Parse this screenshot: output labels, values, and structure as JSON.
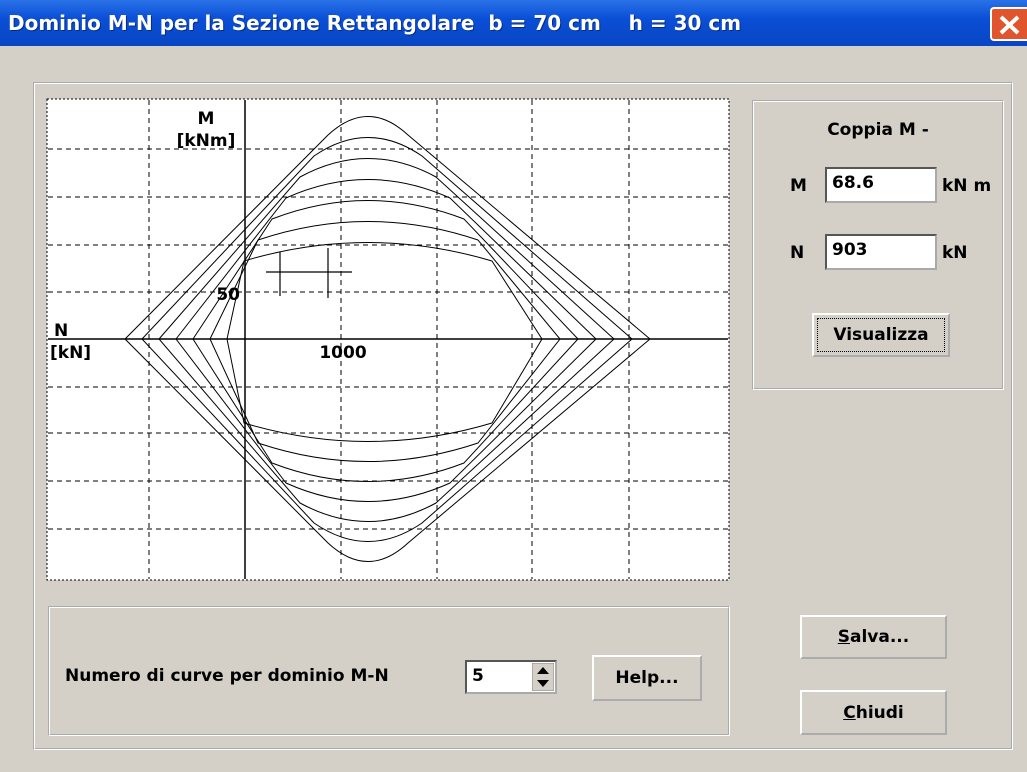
{
  "window": {
    "title": "Dominio M-N per la Sezione Rettangolare  b = 70 cm    h = 30 cm"
  },
  "plot": {
    "m_axis": "M",
    "m_unit": "[kNm]",
    "n_axis": "N",
    "n_unit": "[kN]",
    "m_tick": "50",
    "n_tick": "1000"
  },
  "panel": {
    "title": "Coppia M -",
    "m_label": "M",
    "m_value": "68.6",
    "m_unit": "kN m",
    "n_label": "N",
    "n_value": "903",
    "n_unit": "kN",
    "button": "Visualizza"
  },
  "bottom": {
    "label": "Numero di curve per dominio M-N",
    "spinner": "5",
    "help": "Help...",
    "save": "Salva...",
    "close": "Chiudi"
  }
}
